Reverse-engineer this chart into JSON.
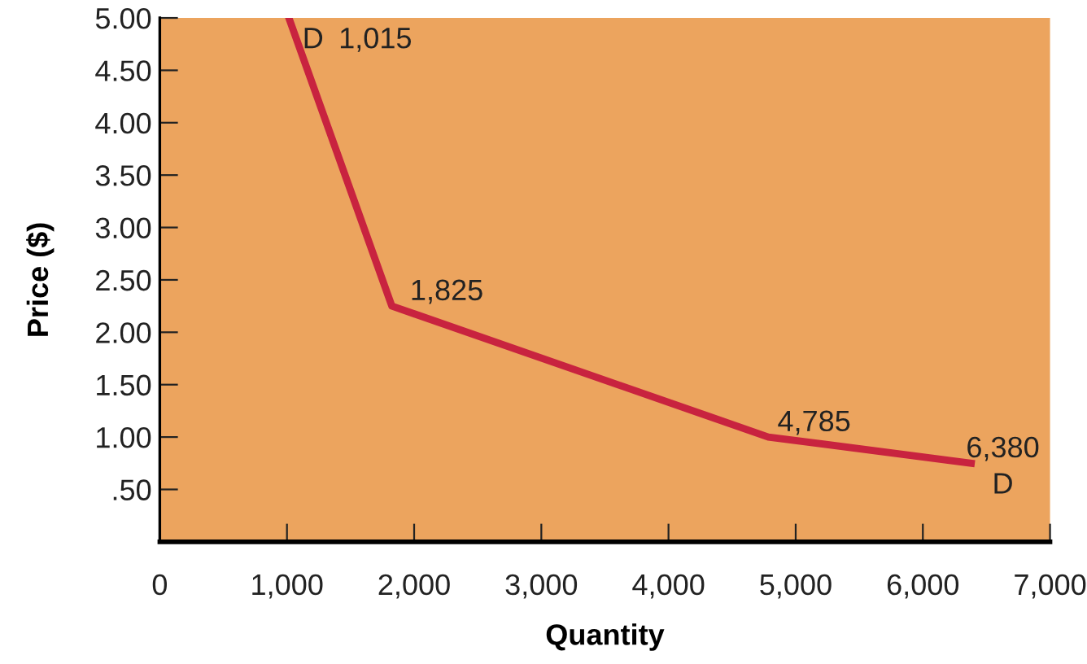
{
  "chart_data": {
    "type": "line",
    "xlabel": "Quantity",
    "ylabel": "Price ($)",
    "x": [
      1015,
      1825,
      4785,
      6380
    ],
    "series": [
      {
        "color": "#c8233f",
        "values": [
          5.0,
          2.25,
          1.0,
          0.75
        ]
      }
    ],
    "xlim": [
      0,
      7000
    ],
    "ylim": [
      0,
      5
    ],
    "xticks": [
      0,
      {
        "value": 1000,
        "label": "1,000"
      },
      {
        "value": 2000,
        "label": "2,000"
      },
      {
        "value": 3000,
        "label": "3,000"
      },
      {
        "value": 4000,
        "label": "4,000"
      },
      {
        "value": 5000,
        "label": "5,000"
      },
      {
        "value": 6000,
        "label": "6,000"
      },
      {
        "value": 7000,
        "label": "7,000"
      }
    ],
    "yticks": [
      {
        "value": 0.5,
        "label": ".50"
      },
      {
        "value": 1,
        "label": "1.00"
      },
      {
        "value": 1.5,
        "label": "1.50"
      },
      {
        "value": 2,
        "label": "2.00"
      },
      {
        "value": 2.5,
        "label": "2.50"
      },
      {
        "value": 3,
        "label": "3.00"
      },
      {
        "value": 3.5,
        "label": "3.50"
      },
      {
        "value": 4,
        "label": "4.00"
      },
      {
        "value": 4.5,
        "label": "4.50"
      },
      {
        "value": 5,
        "label": "5.00"
      }
    ],
    "annotations": [
      {
        "text": "D",
        "x": 1015,
        "y": 5.0
      },
      {
        "text": "1,015",
        "x": 1015,
        "y": 5.0
      },
      {
        "text": "1,825",
        "x": 1825,
        "y": 2.25
      },
      {
        "text": "4,785",
        "x": 4785,
        "y": 1.0
      },
      {
        "text": "6,380",
        "x": 6380,
        "y": 0.75
      },
      {
        "text": "D",
        "x": 6380,
        "y": 0.75
      }
    ],
    "grid": false,
    "legend": false,
    "marker": "none",
    "line_style": "solid"
  }
}
